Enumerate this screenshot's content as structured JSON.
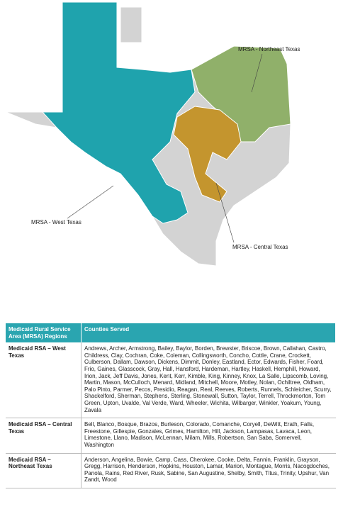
{
  "map": {
    "labels": [
      "MRSA - Northeast Texas",
      "MRSA - West Texas",
      "MRSA - Central Texas"
    ]
  },
  "table": {
    "header": [
      "Medicaid Rural Service Area (MRSA) Regions",
      "Counties Served"
    ],
    "rows": [
      [
        "Medicaid RSA – West Texas",
        "Andrews, Archer, Armstrong, Bailey, Baylor, Borden, Brewster, Briscoe, Brown, Callahan, Castro, Childress, Clay, Cochran, Coke, Coleman, Collingsworth, Concho, Cottle, Crane, Crockett, Culberson, Dallam, Dawson, Dickens, Dimmit, Donley, Eastland, Ector, Edwards, Fisher, Foard, Frio, Gaines, Glasscock, Gray, Hall, Hansford, Hardeman, Hartley, Haskell, Hemphill, Howard, Irion, Jack, Jeff Davis, Jones, Kent, Kerr, Kimble, King, Kinney, Knox, La Salle, Lipscomb, Loving, Martin, Mason, McCulloch, Menard, Midland, Mitchell, Moore, Motley, Nolan, Ochiltree, Oldham, Palo Pinto, Parmer, Pecos, Presidio, Reagan, Real, Reeves, Roberts, Runnels, Schleicher, Scurry, Shackelford, Sherman, Stephens, Sterling, Stonewall, Sutton, Taylor, Terrell, Throckmorton, Tom Green, Upton, Uvalde, Val Verde, Ward, Wheeler, Wichita, Wilbarger, Winkler, Yoakum, Young, Zavala"
      ],
      [
        "Medicaid RSA – Central Texas",
        "Bell, Blanco, Bosque, Brazos, Burleson, Colorado, Comanche, Coryell, DeWitt, Erath, Falls, Freestone, Gillespie, Gonzales, Grimes, Hamilton, Hill, Jackson, Lampasas, Lavaca, Leon, Limestone, Llano, Madison, McLennan, Milam, Mills, Robertson, San Saba, Somervell, Washington"
      ],
      [
        "Medicaid RSA – Northeast Texas",
        "Anderson, Angelina, Bowie, Camp, Cass, Cherokee, Cooke, Delta, Fannin, Franklin, Grayson, Gregg, Harrison, Henderson, Hopkins, Houston, Lamar, Marion, Montague, Morris, Nacogdoches, Panola, Rains, Red River, Rusk, Sabine, San Augustine, Shelby, Smith, Titus, Trinity, Upshur, Van Zandt, Wood"
      ]
    ]
  }
}
